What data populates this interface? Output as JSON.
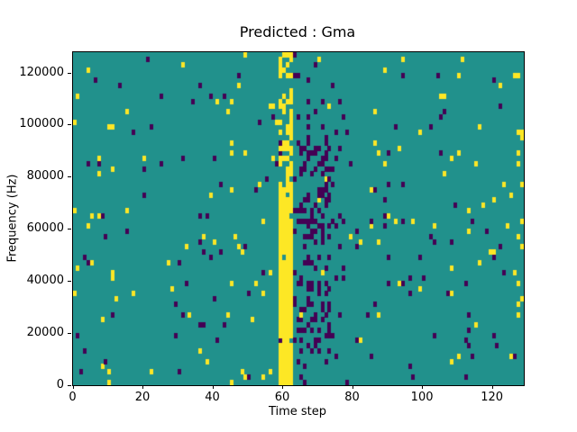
{
  "chart_data": {
    "type": "heatmap",
    "title": "Predicted : Gma",
    "xlabel": "Time step",
    "ylabel": "Frequency (Hz)",
    "xlim": [
      0,
      129
    ],
    "ylim": [
      0,
      128000
    ],
    "xticks": [
      0,
      20,
      40,
      60,
      80,
      100,
      120
    ],
    "yticks": [
      0,
      20000,
      40000,
      60000,
      80000,
      100000,
      120000
    ],
    "grid": {
      "cols": 129,
      "rows": 64,
      "freq_per_row": 2000
    },
    "legend_position": "none",
    "grid_lines": false,
    "value_classes": {
      "mid": "background teal (most cells)",
      "high": "yellow cells",
      "low": "dark purple cells"
    },
    "colors": {
      "figure_bg": "#ffffff",
      "axis": "#000000",
      "mid": "#21918c",
      "high": "#fde725",
      "low": "#440154"
    },
    "features": {
      "yellow_band": {
        "time_start": 59,
        "time_end": 62,
        "freq_start": 0,
        "freq_end": 128000,
        "solid_below_freq": 76000,
        "density_below": 0.97,
        "density_above": 0.5,
        "embedded_purple_density": 0.07
      },
      "purple_cluster": {
        "time_start": 63,
        "time_end": 77,
        "freq_start": 6000,
        "freq_end": 108000,
        "base_density": 0.12,
        "dense_time_start": 65,
        "dense_time_end": 73,
        "dense_freq_bands": [
          [
            12000,
            46000
          ],
          [
            54000,
            88000
          ]
        ],
        "dense_density": 0.32,
        "embedded_yellow_density": 0.02
      },
      "scatter": {
        "seed": 1337,
        "yellow_density": 0.016,
        "purple_density": 0.016,
        "edge_columns_extra_yellow": 0.06
      }
    }
  }
}
